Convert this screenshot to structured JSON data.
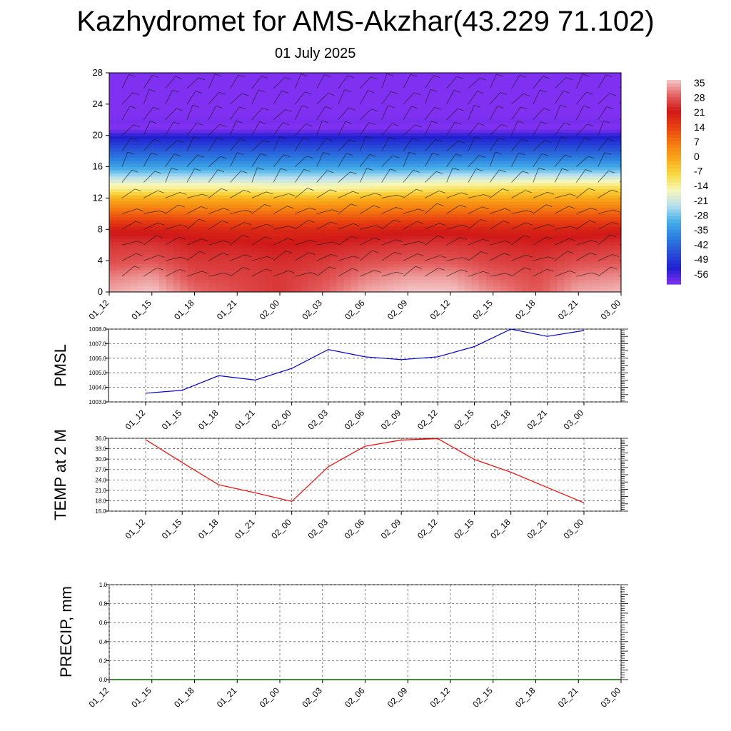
{
  "header": {
    "title": "Kazhydromet for AMS-Akzhar(43.229 71.102)",
    "date": "01 July 2025"
  },
  "chart_data": [
    {
      "type": "heatmap",
      "name": "temperature-profile",
      "yticks": [
        "0",
        "4",
        "8",
        "12",
        "16",
        "20",
        "24",
        "28"
      ],
      "ylim": [
        0,
        28
      ],
      "xticks": [
        "01_12",
        "01_15",
        "01_18",
        "01_21",
        "02_00",
        "02_03",
        "02_06",
        "02_09",
        "02_12",
        "02_15",
        "02_18",
        "02_21",
        "03_00"
      ],
      "colorbar": {
        "labels": [
          "35",
          "28",
          "21",
          "14",
          "7",
          "0",
          "-7",
          "-14",
          "-21",
          "-28",
          "-35",
          "-42",
          "-49",
          "-56"
        ],
        "colors": [
          "#f4c8c8",
          "#e46060",
          "#d01818",
          "#e84010",
          "#f47810",
          "#f8a818",
          "#f8d840",
          "#f8f8b8",
          "#b8e0f0",
          "#48b0e8",
          "#2c80e0",
          "#2850d8",
          "#2020d0",
          "#8030f0"
        ]
      },
      "profiles": [
        {
          "x": "01_12",
          "temps": [
            [
              0,
              33
            ],
            [
              2,
              30
            ],
            [
              4,
              26
            ],
            [
              6,
              24
            ],
            [
              8,
              20
            ],
            [
              10,
              10
            ],
            [
              12,
              -1
            ],
            [
              13,
              -10
            ],
            [
              14,
              -16
            ],
            [
              16,
              -30
            ],
            [
              18,
              -40
            ],
            [
              20,
              -50
            ],
            [
              21,
              -57
            ],
            [
              22,
              -55
            ],
            [
              24,
              -62
            ],
            [
              28,
              -63
            ]
          ]
        },
        {
          "x": "01_15",
          "temps": [
            [
              0,
              35
            ],
            [
              2,
              32
            ],
            [
              4,
              27
            ],
            [
              6,
              24
            ],
            [
              8,
              20
            ],
            [
              10,
              10
            ],
            [
              12,
              -1
            ],
            [
              13,
              -10
            ],
            [
              14,
              -16
            ],
            [
              16,
              -30
            ],
            [
              18,
              -40
            ],
            [
              20,
              -50
            ],
            [
              21,
              -57
            ],
            [
              22,
              -55
            ],
            [
              24,
              -62
            ],
            [
              28,
              -63
            ]
          ]
        },
        {
          "x": "01_18",
          "temps": [
            [
              0,
              29
            ],
            [
              2,
              26
            ],
            [
              4,
              24
            ],
            [
              6,
              22
            ],
            [
              8,
              19
            ],
            [
              10,
              9
            ],
            [
              12,
              -1
            ],
            [
              13,
              -10
            ],
            [
              14,
              -16
            ],
            [
              16,
              -30
            ],
            [
              18,
              -40
            ],
            [
              20,
              -50
            ],
            [
              21,
              -57
            ],
            [
              22,
              -55
            ],
            [
              24,
              -62
            ],
            [
              28,
              -63
            ]
          ]
        },
        {
          "x": "01_21",
          "temps": [
            [
              0,
              26
            ],
            [
              2,
              25
            ],
            [
              4,
              24
            ],
            [
              6,
              22
            ],
            [
              8,
              18
            ],
            [
              10,
              9
            ],
            [
              12,
              -1
            ],
            [
              13,
              -10
            ],
            [
              14,
              -16
            ],
            [
              16,
              -30
            ],
            [
              18,
              -40
            ],
            [
              20,
              -50
            ],
            [
              21,
              -57
            ],
            [
              22,
              -55
            ],
            [
              24,
              -62
            ],
            [
              28,
              -63
            ]
          ]
        },
        {
          "x": "02_00",
          "temps": [
            [
              0,
              24
            ],
            [
              2,
              24
            ],
            [
              4,
              23
            ],
            [
              6,
              21
            ],
            [
              8,
              18
            ],
            [
              10,
              9
            ],
            [
              12,
              -2
            ],
            [
              13,
              -11
            ],
            [
              14,
              -17
            ],
            [
              16,
              -30
            ],
            [
              18,
              -40
            ],
            [
              20,
              -50
            ],
            [
              21,
              -57
            ],
            [
              22,
              -55
            ],
            [
              24,
              -62
            ],
            [
              28,
              -63
            ]
          ]
        },
        {
          "x": "02_03",
          "temps": [
            [
              0,
              28
            ],
            [
              2,
              26
            ],
            [
              4,
              24
            ],
            [
              6,
              22
            ],
            [
              8,
              18
            ],
            [
              10,
              9
            ],
            [
              12,
              -2
            ],
            [
              13,
              -11
            ],
            [
              14,
              -17
            ],
            [
              16,
              -30
            ],
            [
              18,
              -40
            ],
            [
              20,
              -50
            ],
            [
              21,
              -57
            ],
            [
              22,
              -55
            ],
            [
              24,
              -62
            ],
            [
              28,
              -63
            ]
          ]
        },
        {
          "x": "02_06",
          "temps": [
            [
              0,
              33
            ],
            [
              2,
              30
            ],
            [
              4,
              26
            ],
            [
              6,
              23
            ],
            [
              8,
              19
            ],
            [
              10,
              9
            ],
            [
              12,
              -1
            ],
            [
              13,
              -10
            ],
            [
              14,
              -16
            ],
            [
              16,
              -30
            ],
            [
              18,
              -40
            ],
            [
              20,
              -50
            ],
            [
              21,
              -57
            ],
            [
              22,
              -55
            ],
            [
              24,
              -62
            ],
            [
              28,
              -63
            ]
          ]
        },
        {
          "x": "02_09",
          "temps": [
            [
              0,
              35
            ],
            [
              2,
              32
            ],
            [
              4,
              27
            ],
            [
              6,
              24
            ],
            [
              8,
              20
            ],
            [
              10,
              10
            ],
            [
              12,
              0
            ],
            [
              13,
              -9
            ],
            [
              14,
              -15
            ],
            [
              16,
              -30
            ],
            [
              18,
              -40
            ],
            [
              20,
              -50
            ],
            [
              21,
              -57
            ],
            [
              22,
              -55
            ],
            [
              24,
              -62
            ],
            [
              28,
              -63
            ]
          ]
        },
        {
          "x": "02_12",
          "temps": [
            [
              0,
              35
            ],
            [
              2,
              32
            ],
            [
              4,
              27
            ],
            [
              6,
              24
            ],
            [
              8,
              20
            ],
            [
              10,
              10
            ],
            [
              12,
              0
            ],
            [
              13,
              -8
            ],
            [
              14,
              -14
            ],
            [
              16,
              -29
            ],
            [
              18,
              -40
            ],
            [
              20,
              -50
            ],
            [
              21,
              -57
            ],
            [
              22,
              -55
            ],
            [
              24,
              -62
            ],
            [
              28,
              -63
            ]
          ]
        },
        {
          "x": "02_15",
          "temps": [
            [
              0,
              31
            ],
            [
              2,
              28
            ],
            [
              4,
              25
            ],
            [
              6,
              23
            ],
            [
              8,
              19
            ],
            [
              10,
              10
            ],
            [
              12,
              0
            ],
            [
              13,
              -7
            ],
            [
              14,
              -14
            ],
            [
              16,
              -29
            ],
            [
              18,
              -40
            ],
            [
              20,
              -50
            ],
            [
              21,
              -57
            ],
            [
              22,
              -55
            ],
            [
              24,
              -62
            ],
            [
              28,
              -63
            ]
          ]
        },
        {
          "x": "02_18",
          "temps": [
            [
              0,
              27
            ],
            [
              2,
              26
            ],
            [
              4,
              24
            ],
            [
              6,
              22
            ],
            [
              8,
              19
            ],
            [
              10,
              10
            ],
            [
              12,
              0
            ],
            [
              13,
              -6
            ],
            [
              14,
              -13
            ],
            [
              16,
              -29
            ],
            [
              18,
              -40
            ],
            [
              20,
              -50
            ],
            [
              21,
              -57
            ],
            [
              22,
              -55
            ],
            [
              24,
              -62
            ],
            [
              28,
              -63
            ]
          ]
        },
        {
          "x": "02_21",
          "temps": [
            [
              0,
              33
            ],
            [
              2,
              30
            ],
            [
              4,
              26
            ],
            [
              6,
              23
            ],
            [
              8,
              19
            ],
            [
              10,
              10
            ],
            [
              12,
              0
            ],
            [
              13,
              -6
            ],
            [
              14,
              -13
            ],
            [
              16,
              -29
            ],
            [
              18,
              -40
            ],
            [
              20,
              -50
            ],
            [
              21,
              -57
            ],
            [
              22,
              -55
            ],
            [
              24,
              -62
            ],
            [
              28,
              -63
            ]
          ]
        },
        {
          "x": "03_00",
          "temps": [
            [
              0,
              34
            ],
            [
              2,
              31
            ],
            [
              4,
              27
            ],
            [
              6,
              24
            ],
            [
              8,
              20
            ],
            [
              10,
              10
            ],
            [
              12,
              0
            ],
            [
              13,
              -6
            ],
            [
              14,
              -13
            ],
            [
              16,
              -29
            ],
            [
              18,
              -40
            ],
            [
              20,
              -50
            ],
            [
              21,
              -57
            ],
            [
              22,
              -55
            ],
            [
              24,
              -62
            ],
            [
              28,
              -63
            ]
          ]
        }
      ]
    },
    {
      "type": "line",
      "name": "pmsl",
      "ylabel": "PMSL",
      "ylim": [
        1003.0,
        1008.0
      ],
      "yticks": [
        "1003.0",
        "1004.0",
        "1005.0",
        "1006.0",
        "1007.0",
        "1008.0"
      ],
      "categories": [
        "01_12",
        "01_15",
        "01_18",
        "01_21",
        "02_00",
        "02_03",
        "02_06",
        "02_09",
        "02_12",
        "02_15",
        "02_18",
        "02_21",
        "03_00"
      ],
      "series": [
        {
          "values": [
            1003.6,
            1003.8,
            1004.8,
            1004.5,
            1005.3,
            1006.6,
            1006.1,
            1005.9,
            1006.1,
            1006.8,
            1008.0,
            1007.5,
            1007.9
          ],
          "color": "#0000cc"
        }
      ]
    },
    {
      "type": "line",
      "name": "temp2m",
      "ylabel": "TEMP at 2 M",
      "ylim": [
        15.0,
        36.0
      ],
      "yticks": [
        "15.0",
        "18.0",
        "21.0",
        "24.0",
        "27.0",
        "30.0",
        "33.0",
        "36.0"
      ],
      "categories": [
        "01_12",
        "01_15",
        "01_18",
        "01_21",
        "02_00",
        "02_03",
        "02_06",
        "02_09",
        "02_12",
        "02_15",
        "02_18",
        "02_21",
        "03_00"
      ],
      "series": [
        {
          "values": [
            35.6,
            29.0,
            22.6,
            20.3,
            17.8,
            27.8,
            33.7,
            35.5,
            35.9,
            29.9,
            26.2,
            21.8,
            17.4
          ],
          "color": "#ff0000"
        }
      ]
    },
    {
      "type": "line",
      "name": "precip",
      "ylabel": "PRECIP, mm",
      "ylim": [
        0.0,
        1.0
      ],
      "yticks": [
        "0.0",
        "0.2",
        "0.4",
        "0.6",
        "0.8",
        "1.0"
      ],
      "categories": [
        "01_12",
        "01_15",
        "01_18",
        "01_21",
        "02_00",
        "02_03",
        "02_06",
        "02_09",
        "02_12",
        "02_15",
        "02_18",
        "02_21",
        "03_00"
      ],
      "series": [
        {
          "values": [
            0,
            0,
            0,
            0,
            0,
            0,
            0,
            0,
            0,
            0,
            0,
            0,
            0
          ],
          "color": "#006400"
        }
      ]
    }
  ]
}
